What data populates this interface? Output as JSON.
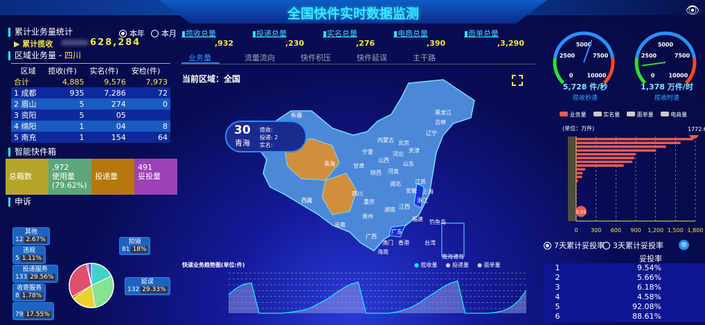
{
  "header": {
    "title": "全国快件实时数据监测",
    "eye_icon": "eye-icon"
  },
  "left": {
    "cumulative": {
      "title": "累计业务量统计",
      "radio_year": "本年",
      "radio_month": "本月",
      "selected": "本年",
      "label": "累计揽收",
      "value_visible": "628,284"
    },
    "region": {
      "title": "区域业务量 - ",
      "region_name": "四川",
      "columns": [
        "区域",
        "揽收(件)",
        "实名(件)",
        "安检(件)"
      ],
      "total": {
        "name": "合计",
        "v1": "4,885",
        "v2": "9,576",
        "v3": "7,973"
      },
      "rows": [
        {
          "name": "1 成都",
          "v1": "935",
          "v2": "7,286",
          "v3": "72"
        },
        {
          "name": "2 眉山",
          "v1": "5",
          "v2": "274",
          "v3": "0"
        },
        {
          "name": "3 资阳",
          "v1": "5",
          "v2": "05",
          "v3": ""
        },
        {
          "name": "4 绵阳",
          "v1": "1",
          "v2": "04",
          "v3": "8"
        },
        {
          "name": "5 南充",
          "v1": "1",
          "v2": "154",
          "v3": "64"
        }
      ]
    },
    "smartbox": {
      "title": "智能快件箱",
      "items": [
        {
          "label": "总箱数",
          "color": "#b5a52a"
        },
        {
          "label": "使用量",
          "sub": "(79.62%)",
          "value_visible": ",972",
          "color": "#5da67a"
        },
        {
          "label": "投递量",
          "color": "#b8770e"
        },
        {
          "label": "妥投量",
          "value_visible": "491",
          "color": "#9b42b5"
        }
      ]
    },
    "complaints": {
      "title": "申诉"
    }
  },
  "kpis": [
    {
      "label": "揽收总量",
      "value_visible": ",932"
    },
    {
      "label": "投递总量",
      "value_visible": ",230"
    },
    {
      "label": "实名总量",
      "value_visible": ",276"
    },
    {
      "label": "电商总量",
      "value_visible": ",390"
    },
    {
      "label": "面单总量",
      "value_visible": ",3,290"
    }
  ],
  "tabs": {
    "items": [
      "业务量",
      "流量流向",
      "快件积压",
      "快件延误",
      "主干路"
    ],
    "active": "业务量"
  },
  "map": {
    "current_region": "当前区域：全国",
    "tooltip": {
      "rank": "30",
      "province": "青海",
      "l1": "揽收:",
      "l2": "投递:",
      "l3": "实名:",
      "v2": "2"
    },
    "provinces": [
      "黑龙江",
      "吉林",
      "辽宁",
      "内蒙古",
      "北京",
      "天津",
      "河北",
      "山西",
      "山东",
      "宁夏",
      "甘肃",
      "陕西",
      "河南",
      "新疆",
      "青海",
      "西藏",
      "四川",
      "重庆",
      "湖北",
      "安徽",
      "江苏",
      "上海",
      "浙江",
      "湖南",
      "江西",
      "福建",
      "贵州",
      "云南",
      "广西",
      "广东",
      "澳门",
      "香港",
      "台湾",
      "海南",
      "钓鱼岛",
      "南海诸岛"
    ],
    "highlight_color": "#d18f3c",
    "select_color": "#1a2fe0"
  },
  "trend": {
    "title": "快递业务趋势图(单位:件)",
    "legend": [
      "揽收量",
      "投递量",
      "面单量"
    ],
    "chart_data": {
      "type": "line",
      "series": [
        {
          "name": "揽收量",
          "values": [
            0.45,
            0.6,
            0.7,
            0.73,
            0,
            0,
            0,
            0,
            0.02,
            0.05,
            0.08,
            0.15,
            0.25,
            0.35,
            0.48,
            0.6,
            0.7,
            0.75,
            0,
            0,
            0,
            0,
            0.03,
            0.08,
            0.15,
            0.25,
            0.38,
            0.5,
            0.62,
            0.72,
            0.78,
            0,
            0,
            0,
            0,
            0.02,
            0.06,
            0.15,
            0.3,
            0.55
          ]
        }
      ]
    }
  },
  "gauges": [
    {
      "value": "5,728 件/秒",
      "v": 5728,
      "label": "揽收秒速",
      "ticks": [
        "0",
        "2500",
        "5000",
        "7500",
        "10000"
      ]
    },
    {
      "value": "1,378 万件/时",
      "v": 1378,
      "label": "揽收时速",
      "ticks": [
        "0",
        "2500",
        "5000",
        "7500",
        "10000"
      ]
    }
  ],
  "bars": {
    "legend": [
      {
        "name": "业务量",
        "color": "#e85a4f"
      },
      {
        "name": "实名量",
        "color": "#ccc"
      },
      {
        "name": "面单量",
        "color": "#ccc"
      },
      {
        "name": "电商量",
        "color": "#ccc"
      }
    ],
    "unit": "(单位：万件)",
    "max_label": "1772.6",
    "min_label": "0.01",
    "chart_data": {
      "type": "bar",
      "orientation": "horizontal",
      "xlim": [
        0,
        1800
      ],
      "xticks": [
        "0",
        "300",
        "600",
        "900",
        "1,200",
        "1,500",
        "1,800"
      ],
      "values": [
        1772.6,
        1580,
        1360,
        1210,
        900,
        880,
        850,
        720,
        140,
        100,
        90,
        30,
        5,
        3,
        2,
        1.5,
        1,
        0.8,
        0.5,
        0.3,
        0.1,
        0.01
      ]
    }
  },
  "delivery": {
    "radio7": "7天累计妥投率",
    "radio3": "3天累计妥投率",
    "selected": "7天累计妥投率",
    "col_rate": "妥投率",
    "rows": [
      {
        "rank": "1",
        "rate": "9.54%"
      },
      {
        "rank": "2",
        "rate": "5.66%"
      },
      {
        "rank": "3",
        "rate": "6.18%"
      },
      {
        "rank": "4",
        "rate": "4.58%"
      },
      {
        "rank": "5",
        "rate": "92.08%"
      },
      {
        "rank": "6",
        "rate": "88.61%"
      }
    ]
  },
  "pie": {
    "chart_data": {
      "type": "pie",
      "slices": [
        {
          "name": "损毁",
          "value": 81,
          "pct": "18%",
          "color": "#3ed4c9"
        },
        {
          "name": "延误",
          "value": 132,
          "pct": "29.33%",
          "color": "#86e390"
        },
        {
          "name": "",
          "value": 79,
          "pct": "17.55%",
          "color": "#ecd02e"
        },
        {
          "name": "收寄服务",
          "value": 8,
          "pct": "1.78%",
          "color": "#e0771e"
        },
        {
          "name": "投递服务",
          "value": 133,
          "pct": "29.56%",
          "color": "#df4f6e"
        },
        {
          "name": "违规",
          "value": 5,
          "pct": "1.11%",
          "color": "#c52aa0"
        },
        {
          "name": "其他",
          "value": 12,
          "pct": "2.67%",
          "color": "#7a3fd6"
        }
      ]
    }
  }
}
